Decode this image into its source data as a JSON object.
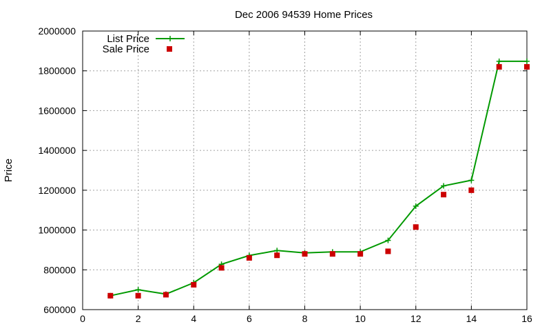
{
  "chart_data": {
    "type": "line",
    "title": "Dec 2006 94539 Home Prices",
    "xlabel": "",
    "ylabel": "Price",
    "xlim": [
      0,
      16
    ],
    "ylim": [
      600000,
      2000000
    ],
    "x_ticks": [
      0,
      2,
      4,
      6,
      8,
      10,
      12,
      14,
      16
    ],
    "y_ticks": [
      600000,
      800000,
      1000000,
      1200000,
      1400000,
      1600000,
      1800000,
      2000000
    ],
    "grid": true,
    "legend_position": "top-left",
    "series": [
      {
        "name": "List Price",
        "style": "line+cross",
        "color": "#009900",
        "x": [
          1,
          2,
          3,
          4,
          5,
          6,
          7,
          8,
          9,
          10,
          11,
          12,
          13,
          14,
          15,
          16
        ],
        "y": [
          670000,
          700000,
          678000,
          735000,
          828000,
          872000,
          897000,
          885000,
          890000,
          890000,
          948000,
          1120000,
          1222000,
          1250000,
          1848000,
          1848000
        ]
      },
      {
        "name": "Sale Price",
        "style": "square",
        "color": "#cc0000",
        "x": [
          1,
          2,
          3,
          4,
          5,
          6,
          7,
          8,
          9,
          10,
          11,
          12,
          13,
          14,
          15,
          16
        ],
        "y": [
          670000,
          670000,
          675000,
          725000,
          810000,
          860000,
          873000,
          880000,
          880000,
          880000,
          893000,
          1015000,
          1178000,
          1200000,
          1820000,
          1820000
        ]
      }
    ]
  }
}
